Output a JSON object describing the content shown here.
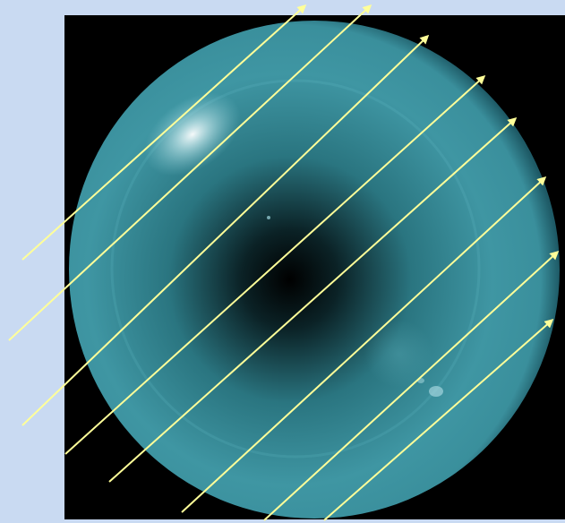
{
  "figure": {
    "subject_icon": "planet-sphere",
    "panel_background": "#000000",
    "page_background": "#c9daf2",
    "planet_color": "#3f96a3",
    "planet_edge_color": "#1e5a66",
    "arrow_color": "#ffff99",
    "arrow_count": 8,
    "arrow_direction": "up-right"
  }
}
